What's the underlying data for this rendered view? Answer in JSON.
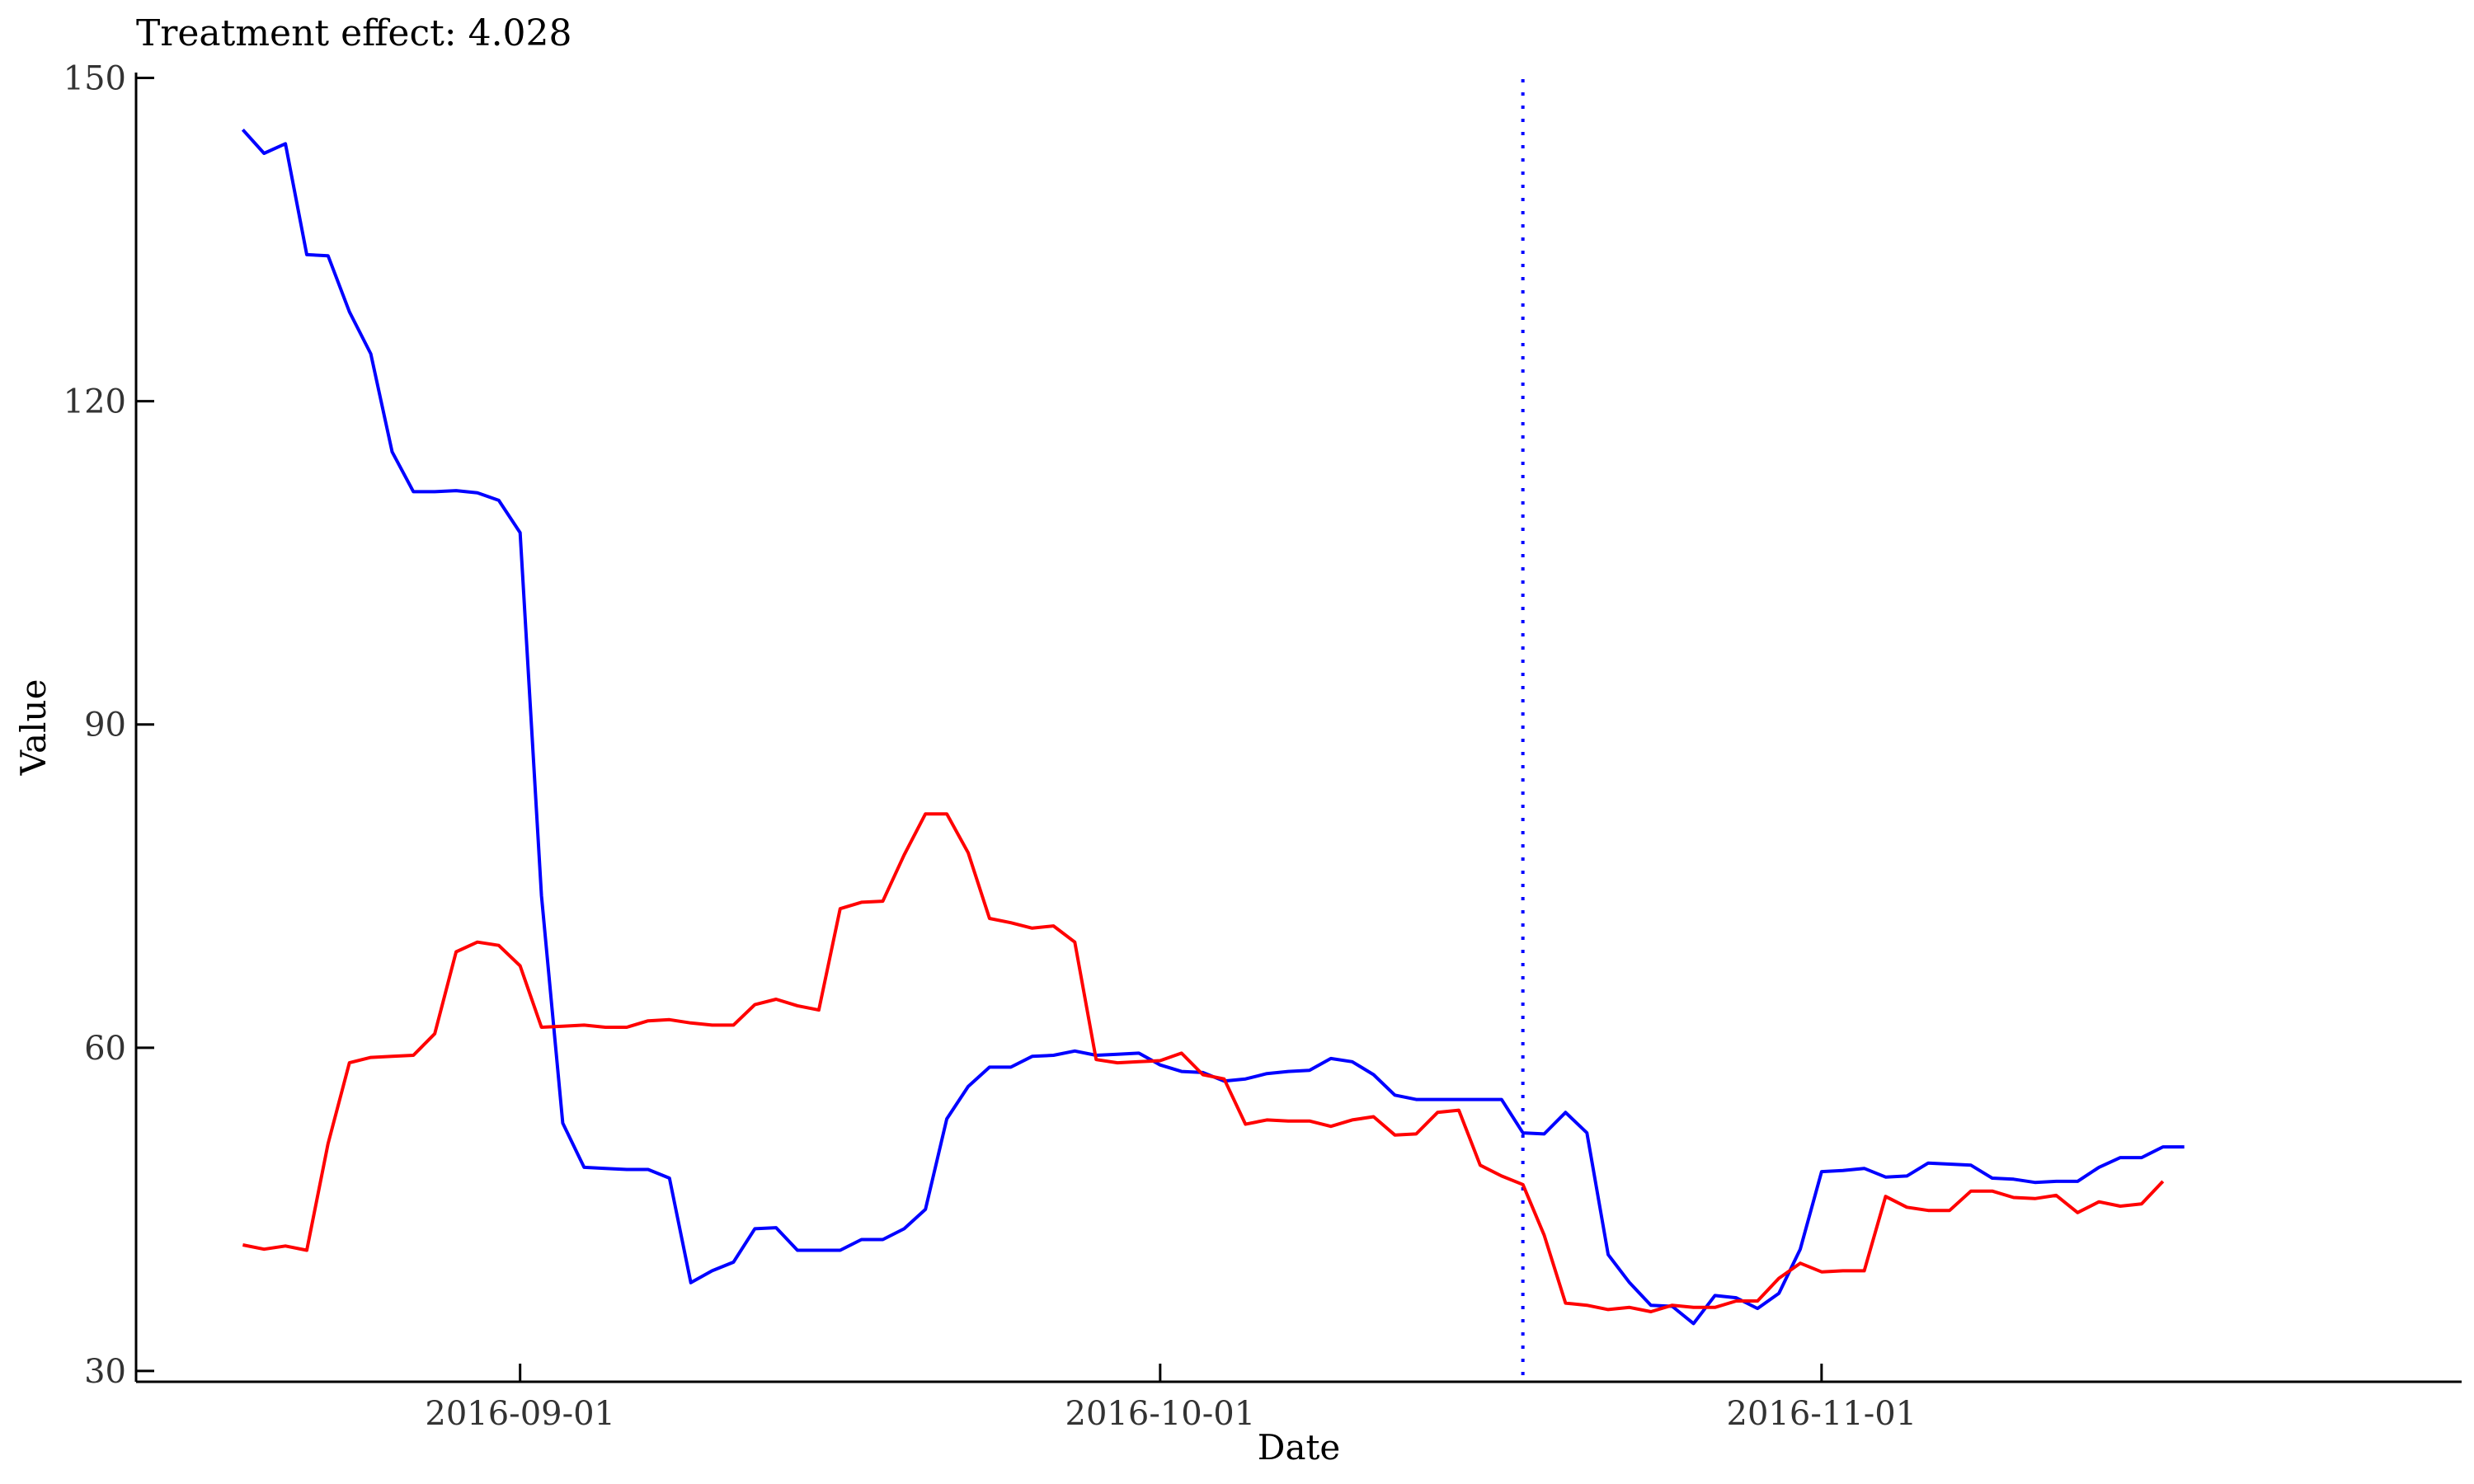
{
  "chart_data": {
    "type": "line",
    "title": "Treatment effect: 4.028",
    "xlabel": "Date",
    "ylabel": "Value",
    "x_start": "2016-08-19",
    "x_ticks": [
      "2016-09-01",
      "2016-10-01",
      "2016-11-01"
    ],
    "xlim": [
      "2016-08-14",
      "2016-12-01"
    ],
    "y_ticks": [
      30,
      60,
      90,
      120,
      150
    ],
    "ylim": [
      29,
      150.5
    ],
    "grid": false,
    "vline": {
      "x": "2016-10-18",
      "color": "#0000ff",
      "style": "dotted"
    },
    "series": [
      {
        "color": "#0000ff",
        "values": [
          145.2,
          143.0,
          143.9,
          133.6,
          133.5,
          128.3,
          124.4,
          115.3,
          111.6,
          111.6,
          111.7,
          111.5,
          110.8,
          107.8,
          74.1,
          53.0,
          48.9,
          48.8,
          48.7,
          48.7,
          47.9,
          38.2,
          39.3,
          40.1,
          43.2,
          43.3,
          41.2,
          41.2,
          41.2,
          42.2,
          42.2,
          43.2,
          45.0,
          53.4,
          56.4,
          58.2,
          58.2,
          59.2,
          59.3,
          59.7,
          59.3,
          59.4,
          59.5,
          58.4,
          57.8,
          57.7,
          56.9,
          57.1,
          57.6,
          57.8,
          57.9,
          59.0,
          58.7,
          57.5,
          55.6,
          55.2,
          55.2,
          55.2,
          55.2,
          55.2,
          52.1,
          52.0,
          54.0,
          52.1,
          40.8,
          38.2,
          36.1,
          36.0,
          34.4,
          37.0,
          36.8,
          35.8,
          37.2,
          41.3,
          48.5,
          48.6,
          48.8,
          48.0,
          48.1,
          49.3,
          49.2,
          49.1,
          47.9,
          47.8,
          47.5,
          47.6,
          47.6,
          48.9,
          49.8,
          49.8,
          50.8,
          50.8
        ]
      },
      {
        "color": "#ff0000",
        "values": [
          41.7,
          41.3,
          41.6,
          41.2,
          51.1,
          58.6,
          59.1,
          59.2,
          59.3,
          61.3,
          68.9,
          69.8,
          69.5,
          67.6,
          61.9,
          62.0,
          62.1,
          61.9,
          61.9,
          62.5,
          62.6,
          62.3,
          62.1,
          62.1,
          64.0,
          64.5,
          63.9,
          63.5,
          72.9,
          73.5,
          73.6,
          77.9,
          81.7,
          81.7,
          78.1,
          72.0,
          71.6,
          71.1,
          71.3,
          69.8,
          58.9,
          58.6,
          58.7,
          58.8,
          59.5,
          57.5,
          57.1,
          52.9,
          53.3,
          53.2,
          53.2,
          52.7,
          53.3,
          53.6,
          51.9,
          52.0,
          54.0,
          54.2,
          49.1,
          48.1,
          47.3,
          42.6,
          36.3,
          36.1,
          35.7,
          35.9,
          35.5,
          36.1,
          35.9,
          35.9,
          36.5,
          36.5,
          38.6,
          40.0,
          39.2,
          39.3,
          39.3,
          46.2,
          45.2,
          44.9,
          44.9,
          46.7,
          46.7,
          46.1,
          46.0,
          46.3,
          44.7,
          45.7,
          45.3,
          45.5,
          47.6
        ]
      }
    ]
  }
}
